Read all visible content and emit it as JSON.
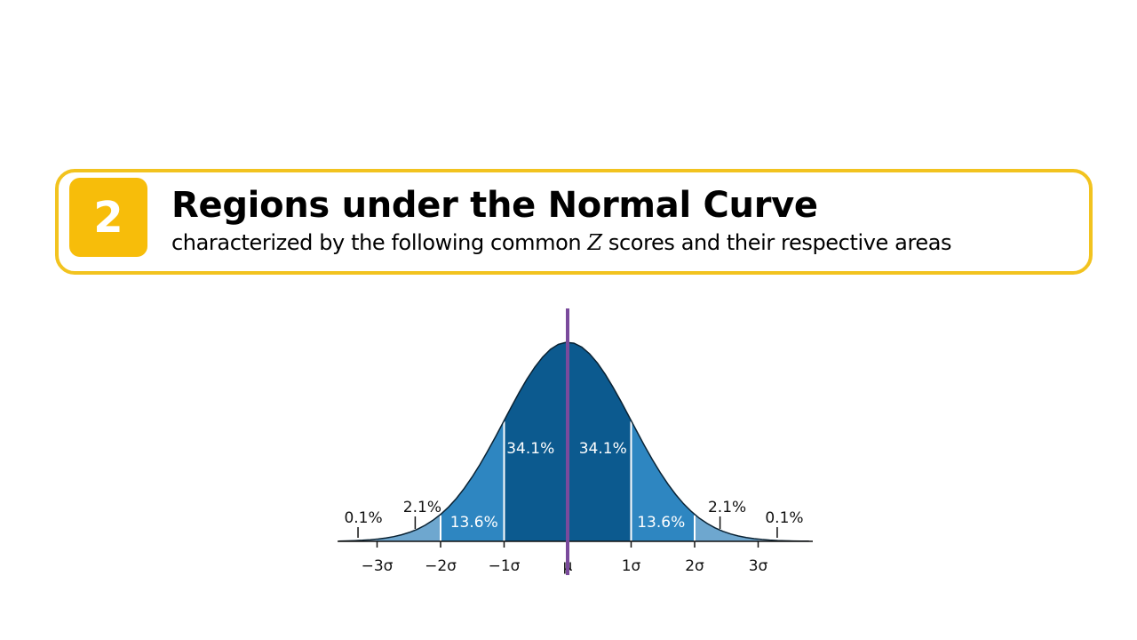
{
  "section": {
    "number": "2",
    "title": "Regions under the Normal Curve",
    "subtitle_before": "characterized by the following common ",
    "subtitle_var": "Z",
    "subtitle_after": " scores and their respective areas"
  },
  "chart_data": {
    "type": "area",
    "distribution": "normal",
    "x_ticks": [
      "−3σ",
      "−2σ",
      "−1σ",
      "μ",
      "1σ",
      "2σ",
      "3σ"
    ],
    "regions": [
      {
        "from": -3,
        "to": -2,
        "label": "2.1%",
        "percent": 2.1,
        "color": "#6ea7cf"
      },
      {
        "from": -2,
        "to": -1,
        "label": "13.6%",
        "percent": 13.6,
        "color": "#2e86c1"
      },
      {
        "from": -1,
        "to": 0,
        "label": "34.1%",
        "percent": 34.1,
        "color": "#0c5a8f"
      },
      {
        "from": 0,
        "to": 1,
        "label": "34.1%",
        "percent": 34.1,
        "color": "#0c5a8f"
      },
      {
        "from": 1,
        "to": 2,
        "label": "13.6%",
        "percent": 13.6,
        "color": "#2e86c1"
      },
      {
        "from": 2,
        "to": 3,
        "label": "2.1%",
        "percent": 2.1,
        "color": "#6ea7cf"
      }
    ],
    "tails": [
      {
        "side": "left",
        "label": "0.1%",
        "percent": 0.1
      },
      {
        "side": "right",
        "label": "0.1%",
        "percent": 0.1
      }
    ],
    "mean_line_color": "#7a4a9c"
  }
}
